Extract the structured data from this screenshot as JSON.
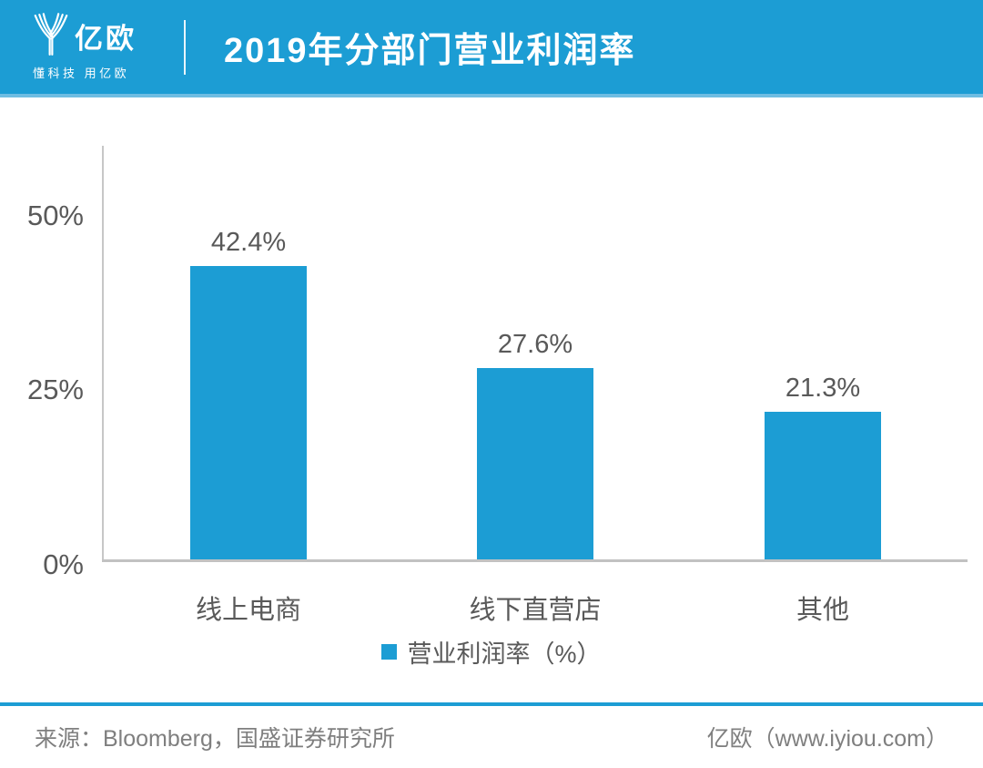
{
  "header": {
    "logo_text": "亿欧",
    "logo_tagline": "懂科技 用亿欧",
    "title": "2019年分部门营业利润率"
  },
  "chart_data": {
    "type": "bar",
    "title": "2019年分部门营业利润率",
    "categories": [
      "线上电商",
      "线下直营店",
      "其他"
    ],
    "values": [
      42.4,
      27.6,
      21.3
    ],
    "value_labels": [
      "42.4%",
      "27.6%",
      "21.3%"
    ],
    "ytick_labels": [
      "50%",
      "25%",
      "0%"
    ],
    "ylim": [
      0,
      60
    ],
    "grid": false,
    "legend": {
      "label": "营业利润率（%）",
      "position": "bottom"
    },
    "bar_color": "#1C9DD4"
  },
  "footer": {
    "source": "来源：Bloomberg，国盛证券研究所",
    "site": "亿欧（www.iyiou.com）"
  },
  "colors": {
    "accent": "#1C9DD4",
    "label_gray": "#595959",
    "axis_gray": "#C7C7C7"
  }
}
